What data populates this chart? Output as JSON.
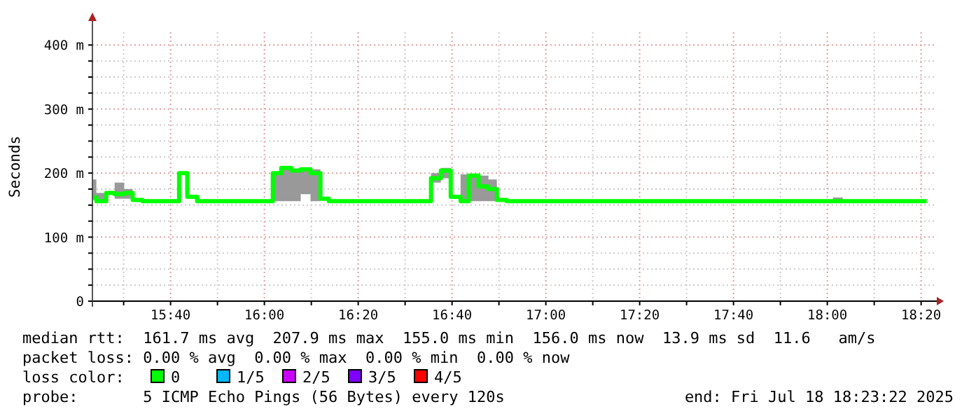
{
  "chart_data": {
    "type": "step",
    "ylabel": "Seconds",
    "legend_title": "loss color:",
    "legend": "bottom",
    "grid": true,
    "line_style": "solid",
    "xlim": [
      15.389,
      18.389
    ],
    "ylim": [
      0,
      420
    ],
    "xticks": [
      {
        "value": 15.5,
        "label": null
      },
      {
        "value": 15.6667,
        "label": "15:40"
      },
      {
        "value": 15.8333,
        "label": null
      },
      {
        "value": 16,
        "label": "16:00"
      },
      {
        "value": 16.1667,
        "label": null
      },
      {
        "value": 16.3333,
        "label": "16:20"
      },
      {
        "value": 16.5,
        "label": null
      },
      {
        "value": 16.6667,
        "label": "16:40"
      },
      {
        "value": 16.8333,
        "label": null
      },
      {
        "value": 17,
        "label": "17:00"
      },
      {
        "value": 17.1667,
        "label": null
      },
      {
        "value": 17.3333,
        "label": "17:20"
      },
      {
        "value": 17.5,
        "label": null
      },
      {
        "value": 17.6667,
        "label": "17:40"
      },
      {
        "value": 17.8333,
        "label": null
      },
      {
        "value": 18,
        "label": "18:00"
      },
      {
        "value": 18.1667,
        "label": null
      },
      {
        "value": 18.3333,
        "label": "18:20"
      }
    ],
    "yticks": [
      0,
      {
        "value": 25,
        "label": null
      },
      {
        "value": 50,
        "label": null
      },
      {
        "value": 75,
        "label": null
      },
      {
        "value": 100,
        "label": "100 m"
      },
      {
        "value": 125,
        "label": null
      },
      {
        "value": 150,
        "label": null
      },
      {
        "value": 175,
        "label": null
      },
      {
        "value": 200,
        "label": "200 m"
      },
      {
        "value": 225,
        "label": null
      },
      {
        "value": 250,
        "label": null
      },
      {
        "value": 275,
        "label": null
      },
      {
        "value": 300,
        "label": "300 m"
      },
      {
        "value": 325,
        "label": null
      },
      {
        "value": 350,
        "label": null
      },
      {
        "value": 375,
        "label": null
      },
      {
        "value": 400,
        "label": "400 m"
      }
    ],
    "series": [
      {
        "name": "0",
        "color": "#00ff00",
        "x": [
          15.389,
          15.403,
          15.438,
          15.468,
          15.502,
          15.532,
          15.567,
          15.697,
          15.726,
          15.761,
          16.03,
          16.06,
          16.095,
          16.129,
          16.164,
          16.199,
          16.229,
          16.592,
          16.627,
          16.662,
          16.697,
          16.726,
          16.761,
          16.796,
          16.826,
          16.861,
          18.02,
          18.055,
          18.353
        ],
        "values": [
          162,
          156,
          169,
          167,
          169,
          158,
          156,
          200,
          163,
          156,
          200,
          208,
          204,
          206,
          200,
          160,
          156,
          192,
          204,
          163,
          156,
          196,
          179,
          175,
          158,
          156,
          156,
          156,
          156
        ],
        "lower": [
          158,
          156,
          169,
          160,
          160,
          158,
          156,
          200,
          163,
          156,
          156,
          156,
          156,
          167,
          156,
          160,
          156,
          185,
          192,
          163,
          156,
          156,
          156,
          156,
          158,
          156,
          156,
          156,
          156
        ],
        "upper": [
          190,
          169,
          169,
          185,
          175,
          158,
          156,
          200,
          163,
          156,
          200,
          208,
          206,
          206,
          206,
          160,
          156,
          200,
          208,
          163,
          198,
          198,
          196,
          190,
          158,
          156,
          162,
          156,
          156
        ]
      },
      {
        "name": "1/5",
        "color": "#00b8ff"
      },
      {
        "name": "2/5",
        "color": "#cc00ff"
      },
      {
        "name": "3/5",
        "color": "#7e00ff"
      },
      {
        "name": "4/5",
        "color": "#ff0000"
      }
    ],
    "annotations": [
      "median rtt:  161.7 ms avg  207.9 ms max  155.0 ms min  156.0 ms now  13.9 ms sd  11.6   am/s",
      "packet loss: 0.00 % avg  0.00 % max  0.00 % min  0.00 % now",
      "probe:       5 ICMP Echo Pings (56 Bytes) every 120s",
      "end: Fri Jul 18 18:23:22 2025"
    ]
  }
}
